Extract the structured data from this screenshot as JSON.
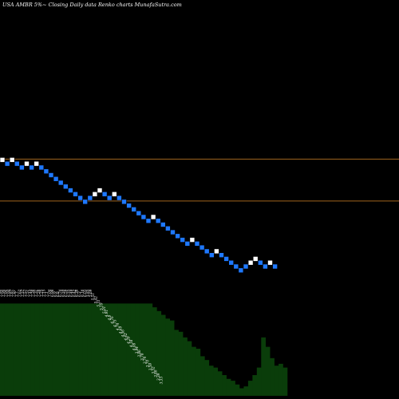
{
  "chart_data": {
    "type": "renko",
    "title": "USA AMBR 5%~  Closing Daily data  Renko  charts MunafaSutra.com",
    "up_color": "#ffffff",
    "down_color": "#1e78ff",
    "volume_color": "#0a3d0a",
    "line_color": "#a0641e",
    "reference_lines": [
      {
        "name": "upper",
        "value": 8.05
      },
      {
        "name": "lower",
        "value": 7.5
      }
    ],
    "ylim": [
      4.9,
      10.14
    ],
    "bricks": [
      {
        "i": 0,
        "value": 8.04,
        "dir": "up"
      },
      {
        "i": 1,
        "value": 7.99,
        "dir": "down"
      },
      {
        "i": 2,
        "value": 8.04,
        "dir": "up"
      },
      {
        "i": 3,
        "value": 7.99,
        "dir": "down"
      },
      {
        "i": 4,
        "value": 7.94,
        "dir": "down"
      },
      {
        "i": 5,
        "value": 7.99,
        "dir": "up"
      },
      {
        "i": 6,
        "value": 7.94,
        "dir": "down"
      },
      {
        "i": 7,
        "value": 7.99,
        "dir": "up"
      },
      {
        "i": 8,
        "value": 7.94,
        "dir": "down"
      },
      {
        "i": 9,
        "value": 7.89,
        "dir": "down"
      },
      {
        "i": 10,
        "value": 7.84,
        "dir": "down"
      },
      {
        "i": 11,
        "value": 7.79,
        "dir": "down"
      },
      {
        "i": 12,
        "value": 7.74,
        "dir": "down"
      },
      {
        "i": 13,
        "value": 7.69,
        "dir": "down"
      },
      {
        "i": 14,
        "value": 7.64,
        "dir": "down"
      },
      {
        "i": 15,
        "value": 7.59,
        "dir": "down"
      },
      {
        "i": 16,
        "value": 7.54,
        "dir": "down"
      },
      {
        "i": 17,
        "value": 7.49,
        "dir": "down"
      },
      {
        "i": 18,
        "value": 7.54,
        "dir": "down"
      },
      {
        "i": 19,
        "value": 7.59,
        "dir": "up"
      },
      {
        "i": 20,
        "value": 7.64,
        "dir": "up"
      },
      {
        "i": 21,
        "value": 7.59,
        "dir": "down"
      },
      {
        "i": 22,
        "value": 7.54,
        "dir": "down"
      },
      {
        "i": 23,
        "value": 7.59,
        "dir": "up"
      },
      {
        "i": 24,
        "value": 7.54,
        "dir": "down"
      },
      {
        "i": 25,
        "value": 7.49,
        "dir": "down"
      },
      {
        "i": 26,
        "value": 7.44,
        "dir": "down"
      },
      {
        "i": 27,
        "value": 7.39,
        "dir": "down"
      },
      {
        "i": 28,
        "value": 7.34,
        "dir": "down"
      },
      {
        "i": 29,
        "value": 7.29,
        "dir": "down"
      },
      {
        "i": 30,
        "value": 7.24,
        "dir": "down"
      },
      {
        "i": 31,
        "value": 7.29,
        "dir": "up"
      },
      {
        "i": 32,
        "value": 7.24,
        "dir": "down"
      },
      {
        "i": 33,
        "value": 7.19,
        "dir": "down"
      },
      {
        "i": 34,
        "value": 7.14,
        "dir": "down"
      },
      {
        "i": 35,
        "value": 7.09,
        "dir": "down"
      },
      {
        "i": 36,
        "value": 7.04,
        "dir": "down"
      },
      {
        "i": 37,
        "value": 6.99,
        "dir": "down"
      },
      {
        "i": 38,
        "value": 6.94,
        "dir": "down"
      },
      {
        "i": 39,
        "value": 6.99,
        "dir": "up"
      },
      {
        "i": 40,
        "value": 6.94,
        "dir": "down"
      },
      {
        "i": 41,
        "value": 6.89,
        "dir": "down"
      },
      {
        "i": 42,
        "value": 6.84,
        "dir": "down"
      },
      {
        "i": 43,
        "value": 6.79,
        "dir": "down"
      },
      {
        "i": 44,
        "value": 6.84,
        "dir": "up"
      },
      {
        "i": 45,
        "value": 6.79,
        "dir": "down"
      },
      {
        "i": 46,
        "value": 6.74,
        "dir": "down"
      },
      {
        "i": 47,
        "value": 6.69,
        "dir": "down"
      },
      {
        "i": 48,
        "value": 6.64,
        "dir": "down"
      },
      {
        "i": 49,
        "value": 6.59,
        "dir": "down"
      },
      {
        "i": 50,
        "value": 6.64,
        "dir": "down"
      },
      {
        "i": 51,
        "value": 6.69,
        "dir": "up"
      },
      {
        "i": 52,
        "value": 6.74,
        "dir": "up"
      },
      {
        "i": 53,
        "value": 6.69,
        "dir": "down"
      },
      {
        "i": 54,
        "value": 6.64,
        "dir": "down"
      },
      {
        "i": 55,
        "value": 6.69,
        "dir": "up"
      },
      {
        "i": 56,
        "value": 6.64,
        "dir": "down"
      }
    ],
    "price_labels": [
      "7.96",
      "7.96",
      "7.96",
      "7.94",
      "7.87",
      "7.81",
      "7.7",
      "7.62",
      "7.57",
      "7.57",
      "7.51",
      "7.44",
      "7.38",
      "7.31",
      "7.28",
      "7.25",
      "7.15",
      "7.1",
      "7.04",
      "6.98",
      "6.9",
      "6.8",
      "6.74",
      "6.59",
      "6.59",
      "6.55",
      "6.49",
      "6.42",
      "6.38",
      "6.3",
      "6.16",
      "6.03",
      "5.85",
      "5.69",
      "5.51",
      "5.42",
      "5.31",
      "5.19",
      "5.01",
      "4.91",
      "4.8",
      "4.76",
      "4.75",
      "4.74",
      "4.69",
      "4.56",
      "4.42",
      "4.29",
      "4.18",
      "4.08",
      "3.94",
      "3.86",
      "3.78",
      "3.74",
      "3.70",
      "3.59",
      "3.52",
      "3.46",
      "3.39",
      "3.33"
    ],
    "volume": [
      0.98,
      0.98,
      0.98,
      0.98,
      0.98,
      0.98,
      0.98,
      0.98,
      0.98,
      0.98,
      0.98,
      0.98,
      0.98,
      0.98,
      0.98,
      0.98,
      0.98,
      0.98,
      0.98,
      0.98,
      0.98,
      0.98,
      0.98,
      0.98,
      0.98,
      0.98,
      0.98,
      0.98,
      0.98,
      0.98,
      0.98,
      0.98,
      0.98,
      0.98,
      0.98,
      0.94,
      0.9,
      0.86,
      0.82,
      0.8,
      0.7,
      0.68,
      0.62,
      0.58,
      0.52,
      0.5,
      0.42,
      0.38,
      0.32,
      0.3,
      0.26,
      0.22,
      0.18,
      0.16,
      0.12,
      0.08,
      0.1,
      0.16,
      0.22,
      0.3,
      0.62,
      0.52,
      0.4,
      0.32,
      0.34,
      0.3
    ]
  }
}
